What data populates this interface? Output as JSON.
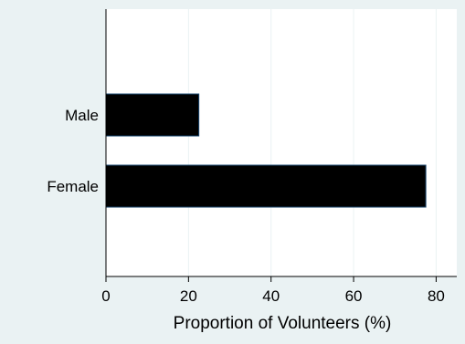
{
  "chart_data": {
    "type": "bar",
    "orientation": "horizontal",
    "categories": [
      "Male",
      "Female"
    ],
    "values": [
      22.5,
      77.5
    ],
    "title": "",
    "xlabel": "Proportion of Volunteers (%)",
    "ylabel": "",
    "xlim": [
      0,
      85
    ],
    "xticks": [
      0,
      20,
      40,
      60,
      80
    ],
    "grid": true,
    "legend": "none",
    "colors": {
      "background": "#EAF2F3",
      "plot_background": "#FFFFFF",
      "bar_fill": "#000000",
      "bar_edge": "#1A476F",
      "grid": "#EAF2F3"
    }
  }
}
